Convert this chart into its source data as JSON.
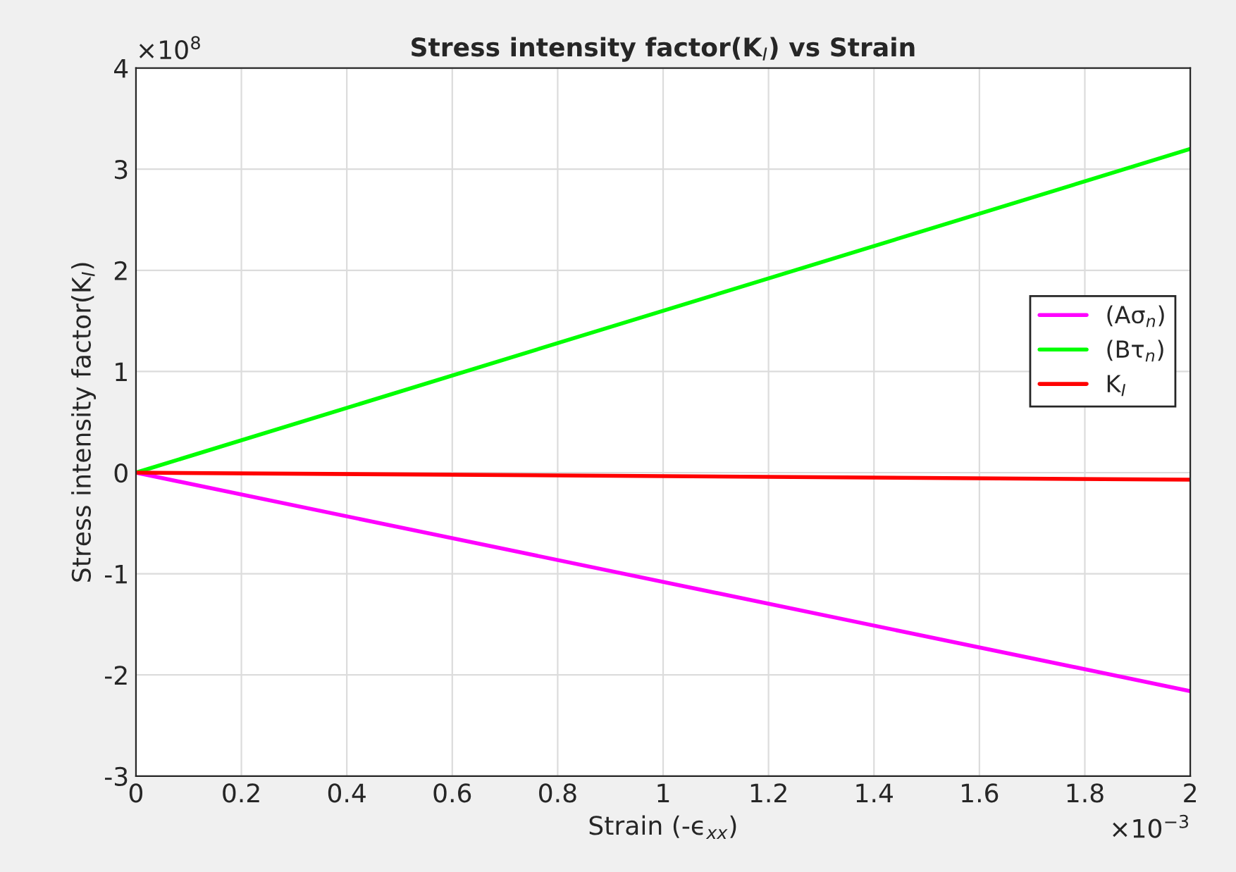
{
  "chart_data": {
    "type": "line",
    "title": "Stress intensity factor(K$_{I}$) vs Strain",
    "xlabel": "Strain (-ϵ$_{xx}$)",
    "ylabel": "Stress intensity factor(K$_{I}$)",
    "x": [
      0,
      2
    ],
    "series": [
      {
        "name": "(Aσ$_{n}$)",
        "color": "#ff00ff",
        "values": [
          0,
          -2.16
        ]
      },
      {
        "name": "(Bτ$_{n}$)",
        "color": "#00ff00",
        "values": [
          0,
          3.2
        ]
      },
      {
        "name": "K$_{I}$",
        "color": "#ff0000",
        "values": [
          0,
          -0.07
        ]
      }
    ],
    "xlim": [
      0,
      2
    ],
    "xticks": [
      0,
      0.2,
      0.4,
      0.6,
      0.8,
      1,
      1.2,
      1.4,
      1.6,
      1.8,
      2
    ],
    "ylim": [
      -3,
      4
    ],
    "yticks": [
      -3,
      -2,
      -1,
      0,
      1,
      2,
      3,
      4
    ],
    "annotations": [
      "×10$^{8}$",
      "×10$^{−3}$"
    ],
    "grid": true,
    "legend": "right",
    "line_style": "solid",
    "marker": "none"
  }
}
